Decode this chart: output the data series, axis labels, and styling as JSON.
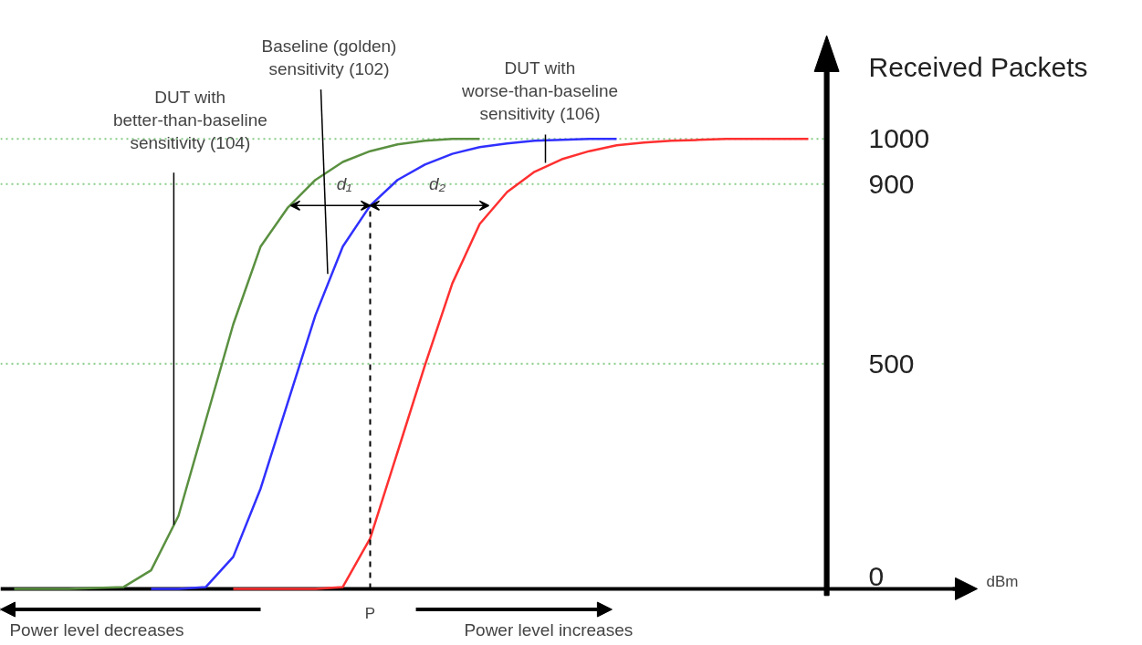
{
  "chart_data": {
    "type": "line",
    "xlabel": "dBm",
    "ylabel": "Received Packets",
    "categories": [
      null,
      null,
      null,
      null,
      null,
      null,
      null,
      null,
      null,
      null,
      null,
      null,
      null,
      "P",
      null,
      null,
      null,
      null,
      null,
      null,
      null,
      null,
      null,
      null,
      null,
      null,
      null,
      null,
      null,
      null
    ],
    "series": [
      {
        "color": "#5a9040",
        "values": [
          0,
          0,
          0,
          2,
          4,
          41,
          162,
          375,
          588,
          761,
          848,
          909,
          949,
          973,
          988,
          996,
          1000,
          1000,
          null,
          null,
          null,
          null,
          null,
          null,
          null,
          null,
          null,
          null,
          null,
          null
        ]
      },
      {
        "color": "#3030ff",
        "values": [
          null,
          null,
          null,
          null,
          null,
          0,
          0,
          4,
          71,
          223,
          416,
          608,
          761,
          852,
          909,
          943,
          967,
          982,
          990,
          996,
          998,
          1000,
          1000,
          null,
          null,
          null,
          null,
          null,
          null,
          null
        ]
      },
      {
        "color": "#ff3030",
        "values": [
          null,
          null,
          null,
          null,
          null,
          null,
          null,
          null,
          0,
          0,
          0,
          0,
          4,
          112,
          304,
          497,
          679,
          811,
          882,
          927,
          955,
          973,
          986,
          992,
          996,
          998,
          1000,
          1000,
          1000,
          1000
        ]
      }
    ],
    "ylim": [
      0,
      1150
    ],
    "yticks": [
      0,
      500,
      900,
      1000
    ],
    "grid": "y",
    "line_style": "solid",
    "marker": "none",
    "ref_lines": [
      {
        "axis": "x",
        "value": "P",
        "color": "#000000",
        "line_style": "dashed"
      }
    ],
    "annotations": [
      "DUT with\nbetter-than-baseline\nsensitivity (104)",
      "Baseline (golden)\nsensitivity (102)",
      "DUT with\nworse-than-baseline\nsensitivity (106)",
      "d₁",
      "d₂",
      "Power level decreases",
      "Power level increases"
    ]
  }
}
